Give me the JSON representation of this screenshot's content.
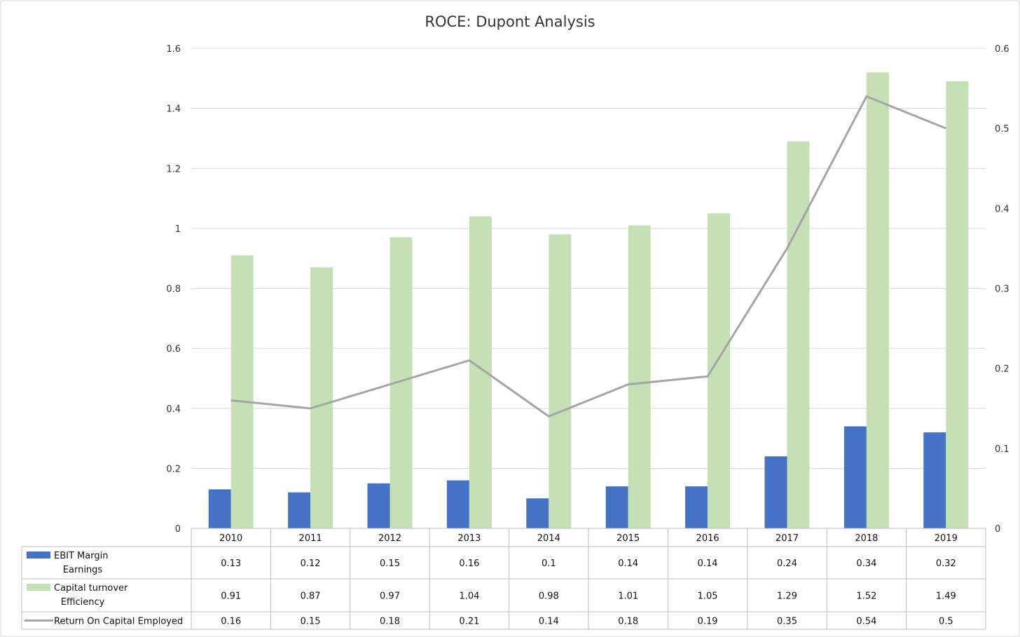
{
  "chart_data": {
    "type": "bar",
    "title": "ROCE: Dupont Analysis",
    "categories": [
      "2010",
      "2011",
      "2012",
      "2013",
      "2014",
      "2015",
      "2016",
      "2017",
      "2018",
      "2019"
    ],
    "y_left": {
      "ticks": [
        "0",
        "0.2",
        "0.4",
        "0.6",
        "0.8",
        "1",
        "1.2",
        "1.4",
        "1.6"
      ],
      "ylim": [
        0,
        1.6
      ]
    },
    "y_right": {
      "ticks": [
        "0",
        "0.1",
        "0.2",
        "0.3",
        "0.4",
        "0.5",
        "0.6"
      ],
      "ylim": [
        0,
        0.6
      ]
    },
    "grid": true,
    "legend": "data-table",
    "series": [
      {
        "name": "EBIT Margin",
        "name2": "Earnings",
        "kind": "bar",
        "axis": "left",
        "color": "#4472C4",
        "values": [
          0.13,
          0.12,
          0.15,
          0.16,
          0.1,
          0.14,
          0.14,
          0.24,
          0.34,
          0.32
        ],
        "labels": [
          "0.13",
          "0.12",
          "0.15",
          "0.16",
          "0.1",
          "0.14",
          "0.14",
          "0.24",
          "0.34",
          "0.32"
        ]
      },
      {
        "name": "Capital turnover",
        "name2": "Efficiency",
        "kind": "bar",
        "axis": "left",
        "color": "#C5E0B4",
        "values": [
          0.91,
          0.87,
          0.97,
          1.04,
          0.98,
          1.01,
          1.05,
          1.29,
          1.52,
          1.49
        ],
        "labels": [
          "0.91",
          "0.87",
          "0.97",
          "1.04",
          "0.98",
          "1.01",
          "1.05",
          "1.29",
          "1.52",
          "1.49"
        ]
      },
      {
        "name": "Return On Capital Employed",
        "kind": "line",
        "axis": "right",
        "color": "#A5A5A5",
        "values": [
          0.16,
          0.15,
          0.18,
          0.21,
          0.14,
          0.18,
          0.19,
          0.35,
          0.54,
          0.5
        ],
        "labels": [
          "0.16",
          "0.15",
          "0.18",
          "0.21",
          "0.14",
          "0.18",
          "0.19",
          "0.35",
          "0.54",
          "0.5"
        ]
      }
    ]
  }
}
